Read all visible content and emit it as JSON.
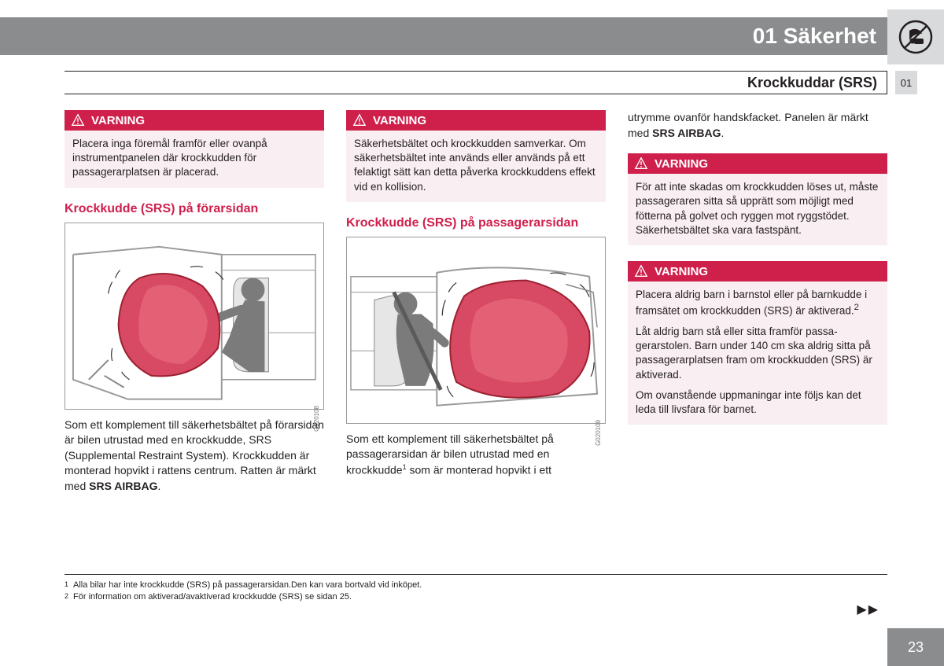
{
  "chapter": {
    "number": "01",
    "title": "Säkerhet"
  },
  "section_title": "Krockkuddar (SRS)",
  "side_tab": "01",
  "colors": {
    "accent": "#cf1f4b",
    "warn_bg": "#f9eef1",
    "grey_bar": "#8b8c8e",
    "light_grey": "#d9dadb"
  },
  "col1": {
    "warn": {
      "label": "VARNING",
      "text": "Placera inga föremål framför eller ovanpå instrumentpanelen där krockkudden för passagerarplatsen är placerad."
    },
    "heading": "Krockkudde (SRS) på förarsidan",
    "fig_code": "G020108",
    "para_html": "Som ett komplement till säkerhetsbältet på för­arsidan är bilen utrustad med en krockkudde, SRS (Supplemental Restraint System). Krock­kudden är monterad hopvikt i rattens centrum. Ratten är märkt med <b>SRS AIRBAG</b>."
  },
  "col2": {
    "warn": {
      "label": "VARNING",
      "text": "Säkerhetsbältet och krockkudden samver­kar. Om säkerhetsbältet inte används eller används på ett felaktigt sätt kan detta påverka krockkuddens effekt vid en kolli­sion."
    },
    "heading": "Krockkudde (SRS) på passagerarsidan",
    "fig_code": "G020109",
    "para_html": "Som ett komplement till säkerhetsbältet på passagerarsidan är bilen utrustad med en krockkudde<sup>1</sup> som är monterad hopvikt i ett"
  },
  "col3": {
    "intro_html": "utrymme ovanför handskfacket. Panelen är märkt med <b>SRS AIRBAG</b>.",
    "warn1": {
      "label": "VARNING",
      "text": "För att inte skadas om krockkudden löses ut, måste passageraren sitta så upprätt som möjligt med fötterna på golvet och ryggen mot ryggstödet. Säkerhetsbältet ska vara fastspänt."
    },
    "warn2": {
      "label": "VARNING",
      "p1_html": "Placera aldrig barn i barnstol eller på barn­kudde i framsätet om krockkudden (SRS) är aktiverad.<sup>2</sup>",
      "p2": "Låt aldrig barn stå eller sitta framför passa­gerarstolen. Barn under 140 cm ska aldrig sitta på passagerarplatsen fram om krock­kudden (SRS) är aktiverad.",
      "p3": "Om ovanstående uppmaningar inte följs kan det leda till livsfara för barnet."
    }
  },
  "footnotes": {
    "f1": {
      "num": "1",
      "text": "Alla bilar har inte krockkudde (SRS) på passagerarsidan.Den kan vara bortvald vid inköpet."
    },
    "f2": {
      "num": "2",
      "text": "För information om aktiverad/avaktiverad krockkudde (SRS) se sidan 25."
    }
  },
  "page_number": "23",
  "continued": "▶▶"
}
